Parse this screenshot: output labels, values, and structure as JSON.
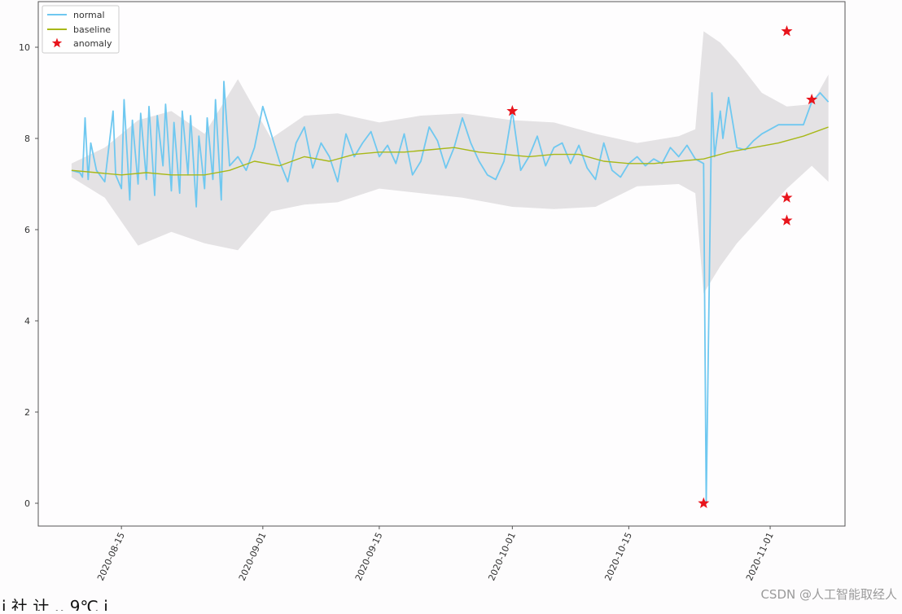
{
  "chart_data": {
    "type": "line",
    "title": "",
    "xlabel": "",
    "ylabel": "",
    "ylim": [
      -0.5,
      11.0
    ],
    "xlim": [
      "2020-08-05",
      "2020-11-10"
    ],
    "yticks": [
      0,
      2,
      4,
      6,
      8,
      10
    ],
    "ytick_labels": [
      "0",
      "2",
      "4",
      "6",
      "8",
      "10"
    ],
    "xtick_dates": [
      "2020-08-15",
      "2020-09-01",
      "2020-09-15",
      "2020-10-01",
      "2020-10-15",
      "2020-11-01"
    ],
    "xtick_labels": [
      "2020-08-15",
      "2020-09-01",
      "2020-09-15",
      "2020-10-01",
      "2020-10-15",
      "2020-11-01"
    ],
    "legend": {
      "position": "top-left",
      "entries": [
        {
          "label": "normal",
          "kind": "line",
          "color": "#6fc8f0"
        },
        {
          "label": "baseline",
          "kind": "line",
          "color": "#a8b818"
        },
        {
          "label": "anomaly",
          "kind": "star",
          "color": "#e8141c"
        }
      ]
    },
    "colors": {
      "normal": "#6fc8f0",
      "baseline": "#a8b818",
      "anomaly": "#e8141c",
      "band": "#e4e2e4"
    },
    "series": [
      {
        "name": "normal",
        "type": "line",
        "points": [
          [
            "2020-08-09",
            7.3
          ],
          [
            "2020-08-10",
            7.25
          ],
          [
            "2020-08-10",
            7.15
          ],
          [
            "2020-08-10",
            8.45
          ],
          [
            "2020-08-11",
            7.1
          ],
          [
            "2020-08-11",
            7.9
          ],
          [
            "2020-08-12",
            7.3
          ],
          [
            "2020-08-13",
            7.05
          ],
          [
            "2020-08-14",
            8.6
          ],
          [
            "2020-08-14",
            7.2
          ],
          [
            "2020-08-15",
            6.9
          ],
          [
            "2020-08-15",
            8.85
          ],
          [
            "2020-08-16",
            6.65
          ],
          [
            "2020-08-16",
            8.4
          ],
          [
            "2020-08-17",
            7.0
          ],
          [
            "2020-08-17",
            8.55
          ],
          [
            "2020-08-18",
            7.1
          ],
          [
            "2020-08-18",
            8.7
          ],
          [
            "2020-08-19",
            6.75
          ],
          [
            "2020-08-19",
            8.5
          ],
          [
            "2020-08-20",
            7.4
          ],
          [
            "2020-08-20",
            8.75
          ],
          [
            "2020-08-21",
            6.85
          ],
          [
            "2020-08-21",
            8.35
          ],
          [
            "2020-08-22",
            6.8
          ],
          [
            "2020-08-22",
            8.6
          ],
          [
            "2020-08-23",
            7.2
          ],
          [
            "2020-08-23",
            8.5
          ],
          [
            "2020-08-24",
            6.5
          ],
          [
            "2020-08-24",
            8.05
          ],
          [
            "2020-08-25",
            6.9
          ],
          [
            "2020-08-25",
            8.45
          ],
          [
            "2020-08-26",
            7.1
          ],
          [
            "2020-08-26",
            8.85
          ],
          [
            "2020-08-27",
            6.65
          ],
          [
            "2020-08-27",
            9.25
          ],
          [
            "2020-08-28",
            7.4
          ],
          [
            "2020-08-29",
            7.6
          ],
          [
            "2020-08-30",
            7.3
          ],
          [
            "2020-08-31",
            7.8
          ],
          [
            "2020-09-01",
            8.7
          ],
          [
            "2020-09-02",
            8.1
          ],
          [
            "2020-09-03",
            7.5
          ],
          [
            "2020-09-04",
            7.05
          ],
          [
            "2020-09-05",
            7.9
          ],
          [
            "2020-09-06",
            8.25
          ],
          [
            "2020-09-07",
            7.35
          ],
          [
            "2020-09-08",
            7.9
          ],
          [
            "2020-09-09",
            7.6
          ],
          [
            "2020-09-10",
            7.05
          ],
          [
            "2020-09-11",
            8.1
          ],
          [
            "2020-09-12",
            7.6
          ],
          [
            "2020-09-13",
            7.9
          ],
          [
            "2020-09-14",
            8.15
          ],
          [
            "2020-09-15",
            7.6
          ],
          [
            "2020-09-16",
            7.85
          ],
          [
            "2020-09-17",
            7.45
          ],
          [
            "2020-09-18",
            8.1
          ],
          [
            "2020-09-19",
            7.2
          ],
          [
            "2020-09-20",
            7.5
          ],
          [
            "2020-09-21",
            8.25
          ],
          [
            "2020-09-22",
            7.95
          ],
          [
            "2020-09-23",
            7.35
          ],
          [
            "2020-09-24",
            7.8
          ],
          [
            "2020-09-25",
            8.45
          ],
          [
            "2020-09-26",
            7.9
          ],
          [
            "2020-09-27",
            7.5
          ],
          [
            "2020-09-28",
            7.2
          ],
          [
            "2020-09-29",
            7.1
          ],
          [
            "2020-09-30",
            7.5
          ],
          [
            "2020-10-01",
            8.6
          ],
          [
            "2020-10-02",
            7.3
          ],
          [
            "2020-10-03",
            7.6
          ],
          [
            "2020-10-04",
            8.05
          ],
          [
            "2020-10-05",
            7.4
          ],
          [
            "2020-10-06",
            7.8
          ],
          [
            "2020-10-07",
            7.9
          ],
          [
            "2020-10-08",
            7.45
          ],
          [
            "2020-10-09",
            7.85
          ],
          [
            "2020-10-10",
            7.35
          ],
          [
            "2020-10-11",
            7.1
          ],
          [
            "2020-10-12",
            7.9
          ],
          [
            "2020-10-13",
            7.3
          ],
          [
            "2020-10-14",
            7.15
          ],
          [
            "2020-10-15",
            7.45
          ],
          [
            "2020-10-16",
            7.6
          ],
          [
            "2020-10-17",
            7.4
          ],
          [
            "2020-10-18",
            7.55
          ],
          [
            "2020-10-19",
            7.45
          ],
          [
            "2020-10-20",
            7.8
          ],
          [
            "2020-10-21",
            7.6
          ],
          [
            "2020-10-22",
            7.85
          ],
          [
            "2020-10-23",
            7.55
          ],
          [
            "2020-10-24",
            7.45
          ],
          [
            "2020-10-24",
            0.0
          ],
          [
            "2020-10-25",
            9.0
          ],
          [
            "2020-10-25",
            7.6
          ],
          [
            "2020-10-26",
            8.6
          ],
          [
            "2020-10-26",
            8.0
          ],
          [
            "2020-10-27",
            8.9
          ],
          [
            "2020-10-28",
            7.8
          ],
          [
            "2020-10-29",
            7.75
          ],
          [
            "2020-10-30",
            7.95
          ],
          [
            "2020-10-31",
            8.1
          ],
          [
            "2020-11-01",
            8.2
          ],
          [
            "2020-11-02",
            8.3
          ],
          [
            "2020-11-03",
            8.3
          ],
          [
            "2020-11-04",
            8.3
          ],
          [
            "2020-11-05",
            8.3
          ],
          [
            "2020-11-06",
            8.8
          ],
          [
            "2020-11-07",
            9.0
          ],
          [
            "2020-11-08",
            8.8
          ]
        ]
      },
      {
        "name": "baseline",
        "type": "line",
        "points": [
          [
            "2020-08-09",
            7.3
          ],
          [
            "2020-08-12",
            7.25
          ],
          [
            "2020-08-15",
            7.2
          ],
          [
            "2020-08-18",
            7.25
          ],
          [
            "2020-08-21",
            7.2
          ],
          [
            "2020-08-25",
            7.2
          ],
          [
            "2020-08-28",
            7.3
          ],
          [
            "2020-08-31",
            7.5
          ],
          [
            "2020-09-03",
            7.4
          ],
          [
            "2020-09-06",
            7.6
          ],
          [
            "2020-09-09",
            7.5
          ],
          [
            "2020-09-12",
            7.65
          ],
          [
            "2020-09-15",
            7.7
          ],
          [
            "2020-09-18",
            7.7
          ],
          [
            "2020-09-21",
            7.75
          ],
          [
            "2020-09-24",
            7.8
          ],
          [
            "2020-09-27",
            7.7
          ],
          [
            "2020-09-30",
            7.65
          ],
          [
            "2020-10-03",
            7.6
          ],
          [
            "2020-10-06",
            7.65
          ],
          [
            "2020-10-09",
            7.65
          ],
          [
            "2020-10-12",
            7.5
          ],
          [
            "2020-10-15",
            7.45
          ],
          [
            "2020-10-18",
            7.45
          ],
          [
            "2020-10-21",
            7.5
          ],
          [
            "2020-10-24",
            7.55
          ],
          [
            "2020-10-27",
            7.7
          ],
          [
            "2020-10-30",
            7.8
          ],
          [
            "2020-11-02",
            7.9
          ],
          [
            "2020-11-05",
            8.05
          ],
          [
            "2020-11-08",
            8.25
          ]
        ]
      },
      {
        "name": "anomaly",
        "type": "scatter",
        "points": [
          [
            "2020-10-01",
            8.6
          ],
          [
            "2020-10-24",
            0.0
          ],
          [
            "2020-11-03",
            10.35
          ],
          [
            "2020-11-03",
            6.7
          ],
          [
            "2020-11-03",
            6.2
          ],
          [
            "2020-11-06",
            8.85
          ]
        ]
      }
    ],
    "band": {
      "name": "confidence band",
      "upper": [
        [
          "2020-08-09",
          7.45
        ],
        [
          "2020-08-13",
          7.8
        ],
        [
          "2020-08-17",
          8.4
        ],
        [
          "2020-08-21",
          8.6
        ],
        [
          "2020-08-25",
          8.1
        ],
        [
          "2020-08-29",
          9.3
        ],
        [
          "2020-09-02",
          8.0
        ],
        [
          "2020-09-06",
          8.5
        ],
        [
          "2020-09-10",
          8.55
        ],
        [
          "2020-09-15",
          8.35
        ],
        [
          "2020-09-20",
          8.5
        ],
        [
          "2020-09-25",
          8.55
        ],
        [
          "2020-10-01",
          8.4
        ],
        [
          "2020-10-06",
          8.35
        ],
        [
          "2020-10-11",
          8.1
        ],
        [
          "2020-10-16",
          7.9
        ],
        [
          "2020-10-21",
          8.05
        ],
        [
          "2020-10-23",
          8.2
        ],
        [
          "2020-10-24",
          10.35
        ],
        [
          "2020-10-26",
          10.1
        ],
        [
          "2020-10-28",
          9.7
        ],
        [
          "2020-10-31",
          9.0
        ],
        [
          "2020-11-03",
          8.7
        ],
        [
          "2020-11-06",
          8.75
        ],
        [
          "2020-11-08",
          9.4
        ]
      ],
      "lower": [
        [
          "2020-08-09",
          7.15
        ],
        [
          "2020-08-13",
          6.7
        ],
        [
          "2020-08-17",
          5.65
        ],
        [
          "2020-08-21",
          5.95
        ],
        [
          "2020-08-25",
          5.7
        ],
        [
          "2020-08-29",
          5.55
        ],
        [
          "2020-09-02",
          6.4
        ],
        [
          "2020-09-06",
          6.55
        ],
        [
          "2020-09-10",
          6.6
        ],
        [
          "2020-09-15",
          6.9
        ],
        [
          "2020-09-20",
          6.8
        ],
        [
          "2020-09-25",
          6.7
        ],
        [
          "2020-10-01",
          6.5
        ],
        [
          "2020-10-06",
          6.45
        ],
        [
          "2020-10-11",
          6.5
        ],
        [
          "2020-10-16",
          6.95
        ],
        [
          "2020-10-21",
          7.0
        ],
        [
          "2020-10-23",
          6.8
        ],
        [
          "2020-10-24",
          4.6
        ],
        [
          "2020-10-26",
          5.2
        ],
        [
          "2020-10-28",
          5.7
        ],
        [
          "2020-10-31",
          6.3
        ],
        [
          "2020-11-03",
          6.9
        ],
        [
          "2020-11-06",
          7.4
        ],
        [
          "2020-11-08",
          7.05
        ]
      ]
    }
  },
  "watermark": "CSDN @人工智能取经人",
  "footer_fragment": "ⅰ 社 计 .. 9℃ ⅰ"
}
